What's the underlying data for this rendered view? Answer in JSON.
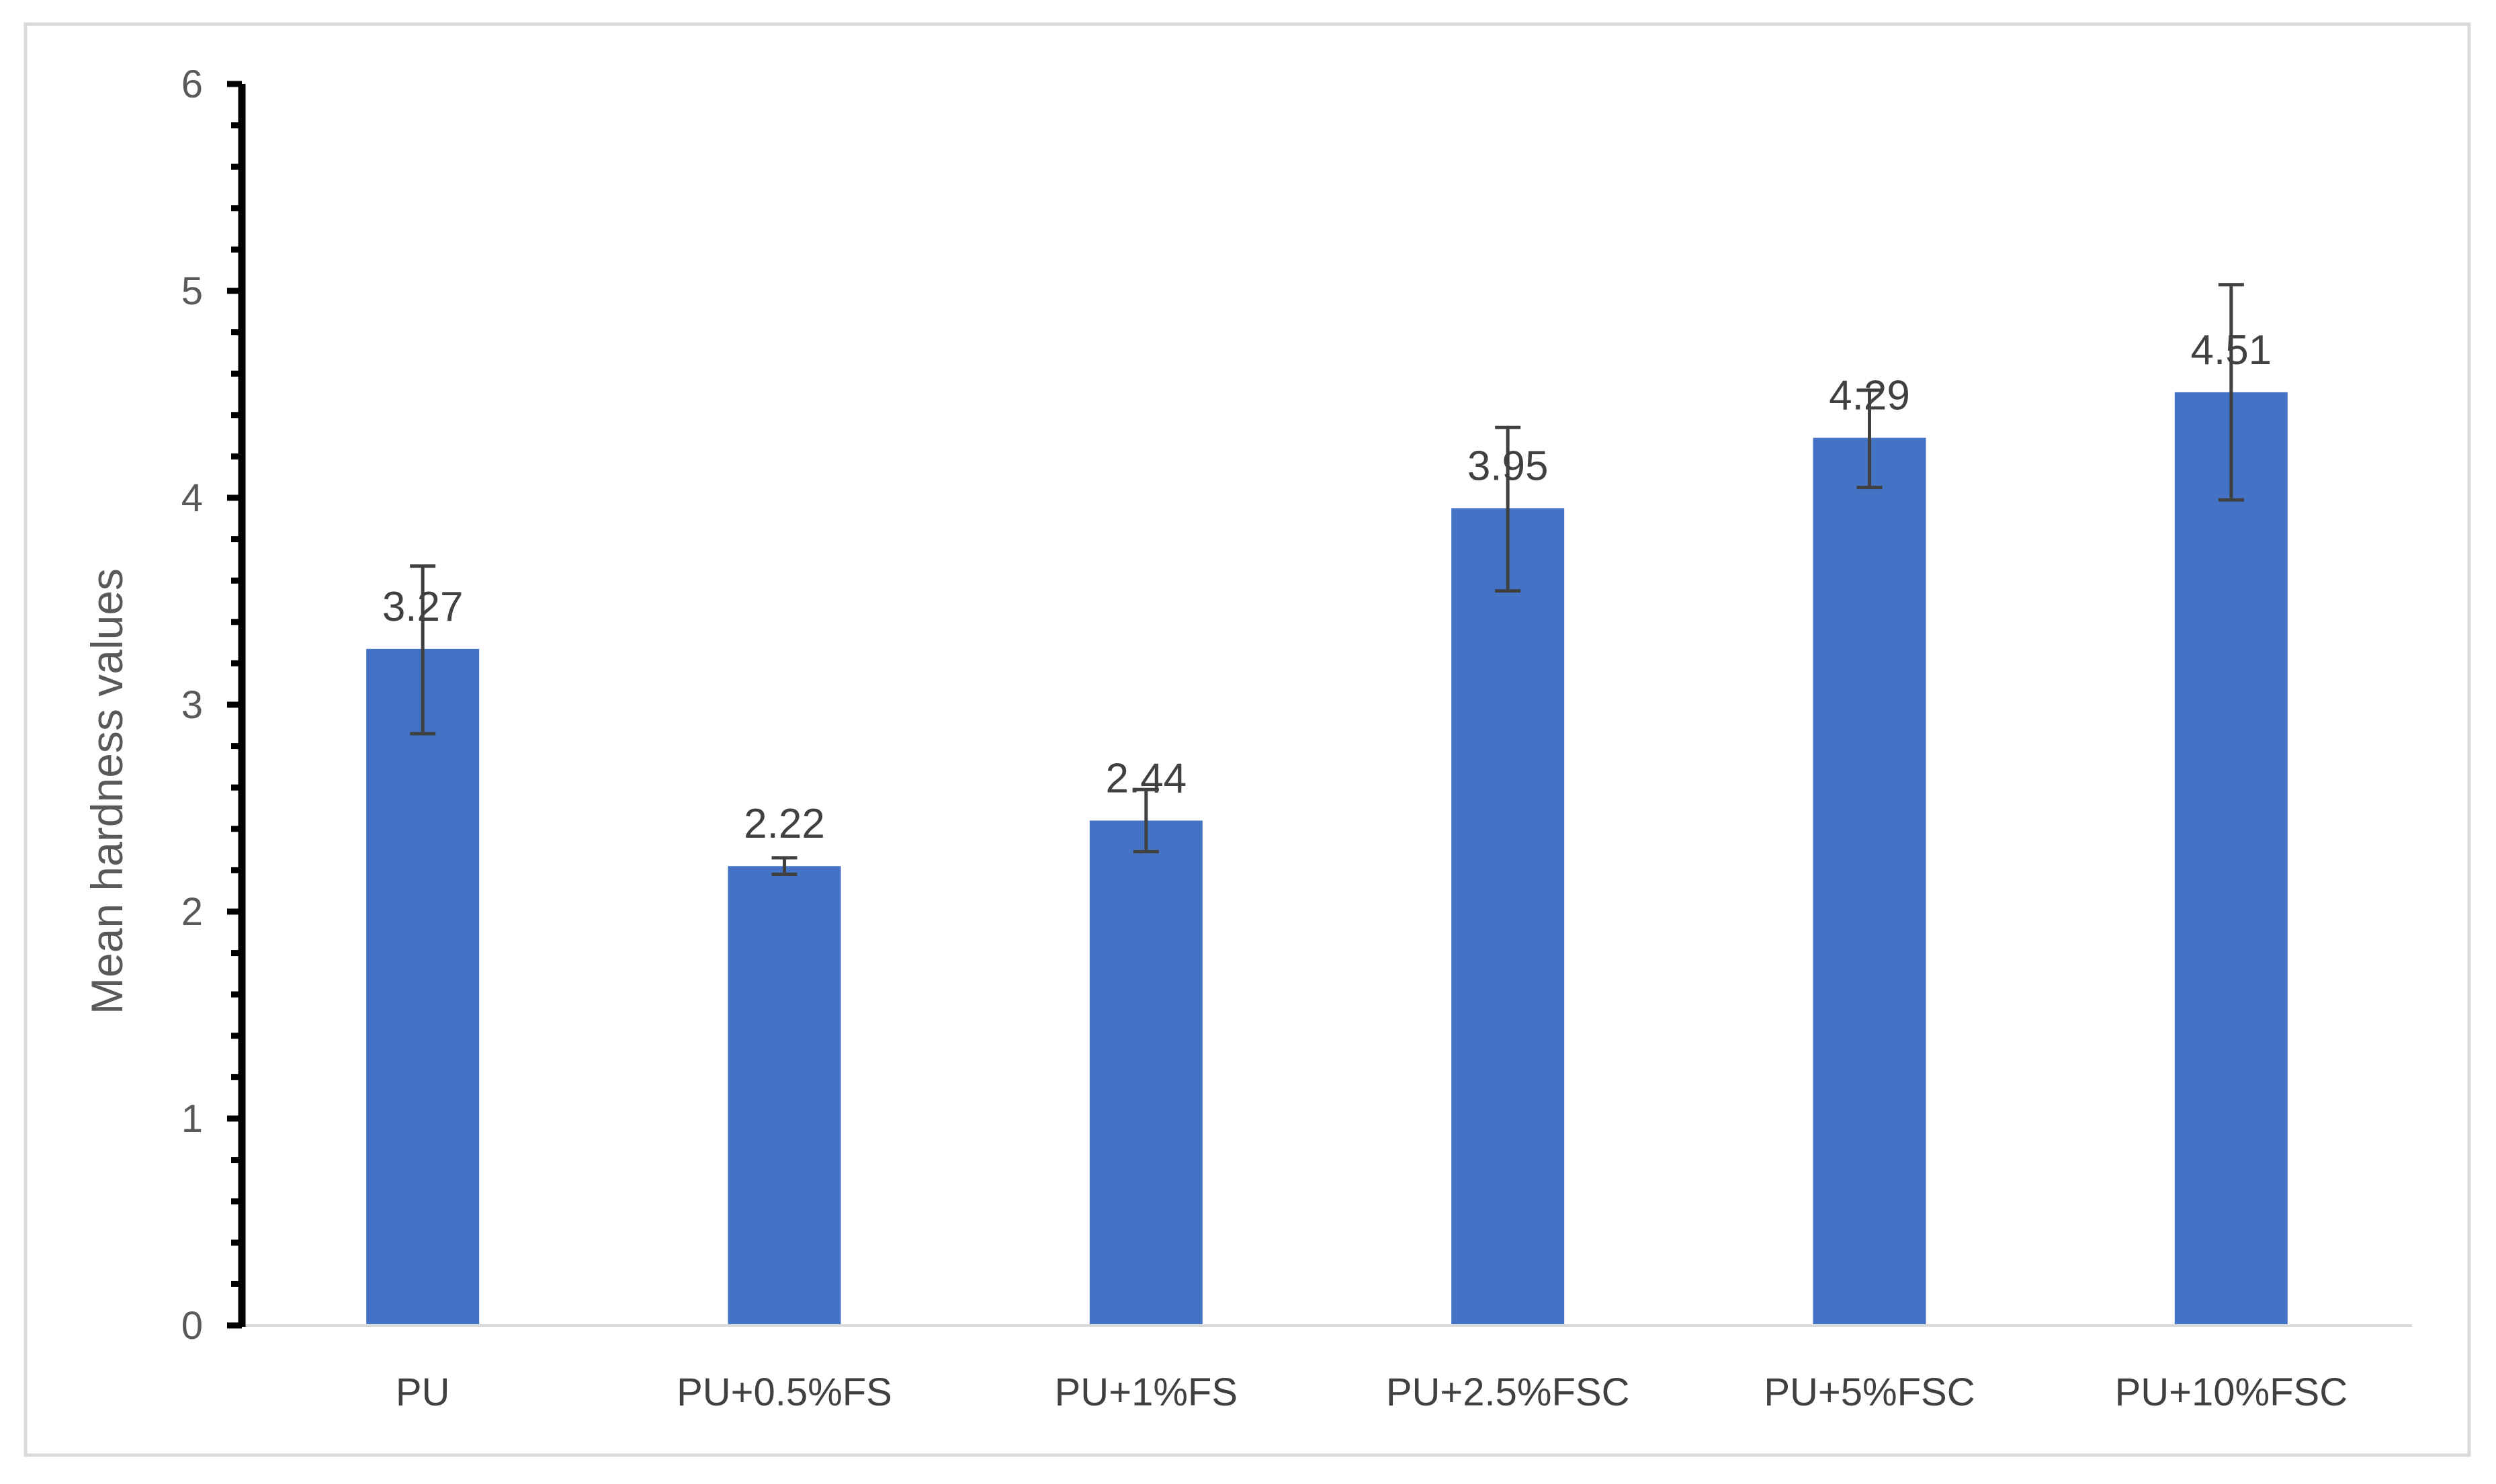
{
  "chart_data": {
    "type": "bar",
    "title": "",
    "xlabel": "",
    "ylabel": "Mean hardness values",
    "categories": [
      "PU",
      "PU+0.5%FS",
      "PU+1%FS",
      "PU+2.5%FSC",
      "PU+5%FSC",
      "PU+10%FSC"
    ],
    "values": [
      3.27,
      2.22,
      2.44,
      3.95,
      4.29,
      4.51
    ],
    "data_labels": [
      "3.27",
      "2.22",
      "2.44",
      "3.95",
      "4.29",
      "4.51"
    ],
    "error_low": [
      2.86,
      2.18,
      2.29,
      3.55,
      4.05,
      3.99
    ],
    "error_high": [
      3.67,
      2.26,
      2.59,
      4.34,
      4.52,
      5.03
    ],
    "ylim": [
      0,
      6
    ],
    "yticks": [
      0,
      1,
      2,
      3,
      4,
      5,
      6
    ],
    "ytick_labels": [
      "0",
      "1",
      "2",
      "3",
      "4",
      "5",
      "6"
    ],
    "grid": false,
    "legend": "none",
    "bar_color": "#4472c4",
    "error_bar_color": "#404040"
  }
}
